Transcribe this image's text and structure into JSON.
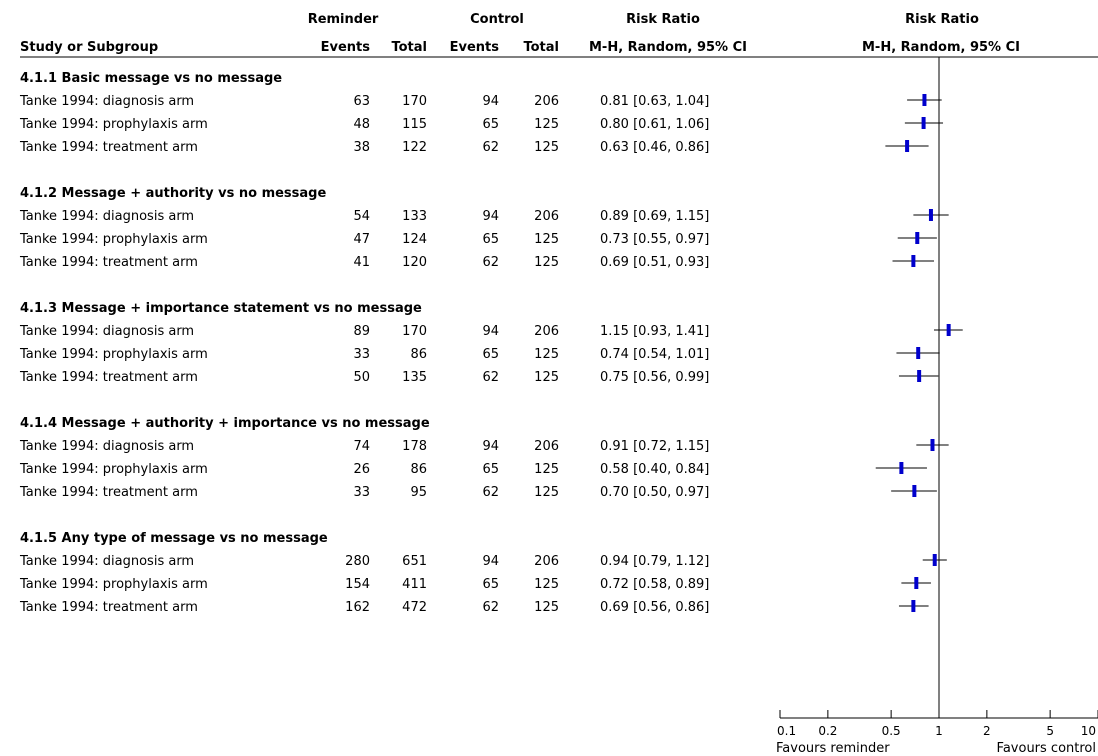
{
  "chart_data": {
    "type": "forest",
    "header": {
      "group1": "Reminder",
      "group2": "Control",
      "rr_header": "Risk Ratio",
      "rr_method": "M-H, Random, 95% CI",
      "plot_header": "Risk Ratio",
      "plot_method": "M-H, Random, 95% CI",
      "study_col": "Study or Subgroup",
      "events": "Events",
      "total": "Total"
    },
    "x_scale": "log",
    "x_ticks": [
      {
        "value": 0.1,
        "label": "0.1"
      },
      {
        "value": 0.2,
        "label": "0.2"
      },
      {
        "value": 0.5,
        "label": "0.5"
      },
      {
        "value": 1,
        "label": "1"
      },
      {
        "value": 2,
        "label": "2"
      },
      {
        "value": 5,
        "label": "5"
      },
      {
        "value": 10,
        "label": "10"
      }
    ],
    "favours_left": "Favours reminder",
    "favours_right": "Favours control",
    "subgroups": [
      {
        "title": "4.1.1 Basic message vs no message",
        "studies": [
          {
            "study": "Tanke 1994: diagnosis arm",
            "e1": "63",
            "t1": "170",
            "e2": "94",
            "t2": "206",
            "rr_text": "0.81 [0.63, 1.04]",
            "rr": 0.81,
            "lo": 0.63,
            "hi": 1.04
          },
          {
            "study": "Tanke 1994: prophylaxis arm",
            "e1": "48",
            "t1": "115",
            "e2": "65",
            "t2": "125",
            "rr_text": "0.80 [0.61, 1.06]",
            "rr": 0.8,
            "lo": 0.61,
            "hi": 1.06
          },
          {
            "study": "Tanke 1994: treatment arm",
            "e1": "38",
            "t1": "122",
            "e2": "62",
            "t2": "125",
            "rr_text": "0.63 [0.46, 0.86]",
            "rr": 0.63,
            "lo": 0.46,
            "hi": 0.86
          }
        ]
      },
      {
        "title": "4.1.2 Message + authority vs no message",
        "studies": [
          {
            "study": "Tanke 1994: diagnosis arm",
            "e1": "54",
            "t1": "133",
            "e2": "94",
            "t2": "206",
            "rr_text": "0.89 [0.69, 1.15]",
            "rr": 0.89,
            "lo": 0.69,
            "hi": 1.15
          },
          {
            "study": "Tanke 1994: prophylaxis arm",
            "e1": "47",
            "t1": "124",
            "e2": "65",
            "t2": "125",
            "rr_text": "0.73 [0.55, 0.97]",
            "rr": 0.73,
            "lo": 0.55,
            "hi": 0.97
          },
          {
            "study": "Tanke 1994: treatment arm",
            "e1": "41",
            "t1": "120",
            "e2": "62",
            "t2": "125",
            "rr_text": "0.69 [0.51, 0.93]",
            "rr": 0.69,
            "lo": 0.51,
            "hi": 0.93
          }
        ]
      },
      {
        "title": "4.1.3 Message + importance statement vs no message",
        "studies": [
          {
            "study": "Tanke 1994: diagnosis arm",
            "e1": "89",
            "t1": "170",
            "e2": "94",
            "t2": "206",
            "rr_text": "1.15 [0.93, 1.41]",
            "rr": 1.15,
            "lo": 0.93,
            "hi": 1.41
          },
          {
            "study": "Tanke 1994: prophylaxis arm",
            "e1": "33",
            "t1": "86",
            "e2": "65",
            "t2": "125",
            "rr_text": "0.74 [0.54, 1.01]",
            "rr": 0.74,
            "lo": 0.54,
            "hi": 1.01
          },
          {
            "study": "Tanke 1994: treatment arm",
            "e1": "50",
            "t1": "135",
            "e2": "62",
            "t2": "125",
            "rr_text": "0.75 [0.56, 0.99]",
            "rr": 0.75,
            "lo": 0.56,
            "hi": 0.99
          }
        ]
      },
      {
        "title": "4.1.4 Message + authority + importance vs no message",
        "studies": [
          {
            "study": "Tanke 1994: diagnosis arm",
            "e1": "74",
            "t1": "178",
            "e2": "94",
            "t2": "206",
            "rr_text": "0.91 [0.72, 1.15]",
            "rr": 0.91,
            "lo": 0.72,
            "hi": 1.15
          },
          {
            "study": "Tanke 1994: prophylaxis arm",
            "e1": "26",
            "t1": "86",
            "e2": "65",
            "t2": "125",
            "rr_text": "0.58 [0.40, 0.84]",
            "rr": 0.58,
            "lo": 0.4,
            "hi": 0.84
          },
          {
            "study": "Tanke 1994: treatment arm",
            "e1": "33",
            "t1": "95",
            "e2": "62",
            "t2": "125",
            "rr_text": "0.70 [0.50, 0.97]",
            "rr": 0.7,
            "lo": 0.5,
            "hi": 0.97
          }
        ]
      },
      {
        "title": "4.1.5 Any type of message vs no message",
        "studies": [
          {
            "study": "Tanke 1994: diagnosis arm",
            "e1": "280",
            "t1": "651",
            "e2": "94",
            "t2": "206",
            "rr_text": "0.94 [0.79, 1.12]",
            "rr": 0.94,
            "lo": 0.79,
            "hi": 1.12
          },
          {
            "study": "Tanke 1994: prophylaxis arm",
            "e1": "154",
            "t1": "411",
            "e2": "65",
            "t2": "125",
            "rr_text": "0.72 [0.58, 0.89]",
            "rr": 0.72,
            "lo": 0.58,
            "hi": 0.89
          },
          {
            "study": "Tanke 1994: treatment arm",
            "e1": "162",
            "t1": "472",
            "e2": "62",
            "t2": "125",
            "rr_text": "0.69 [0.56, 0.86]",
            "rr": 0.69,
            "lo": 0.56,
            "hi": 0.86
          }
        ]
      }
    ]
  },
  "colors": {
    "point": "#0000cc",
    "line": "#000000"
  }
}
